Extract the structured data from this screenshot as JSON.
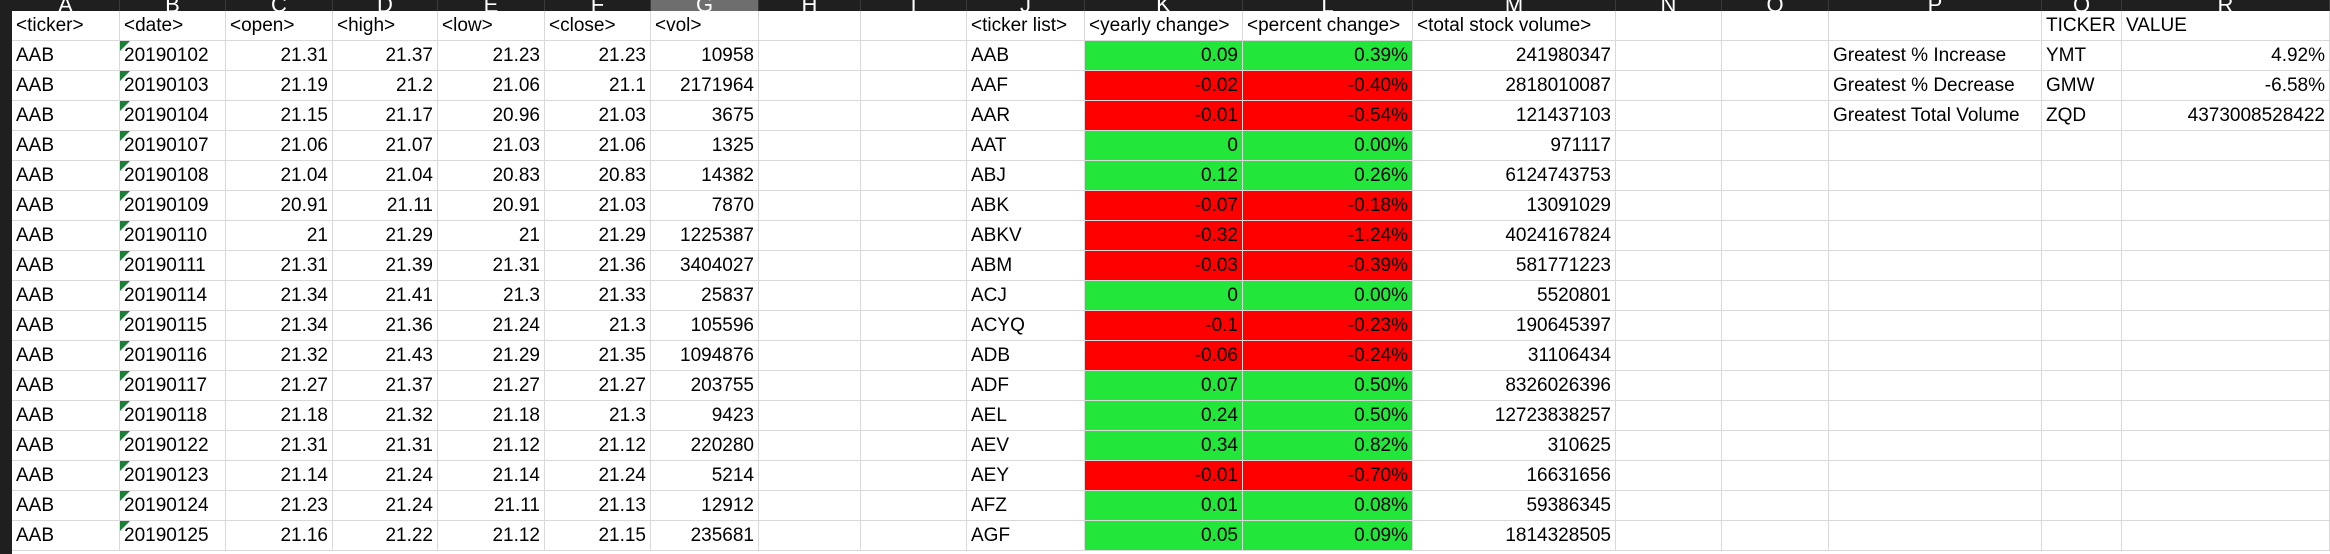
{
  "columns": [
    "A",
    "B",
    "C",
    "D",
    "E",
    "F",
    "G",
    "H",
    "I",
    "J",
    "K",
    "L",
    "M",
    "N",
    "O",
    "P",
    "Q",
    "R"
  ],
  "selected_column": "G",
  "stock_headers": [
    "<ticker>",
    "<date>",
    "<open>",
    "<high>",
    "<low>",
    "<close>",
    "<vol>"
  ],
  "stock_rows": [
    [
      "AAB",
      "20190102",
      "21.31",
      "21.37",
      "21.23",
      "21.23",
      "10958"
    ],
    [
      "AAB",
      "20190103",
      "21.19",
      "21.2",
      "21.06",
      "21.1",
      "2171964"
    ],
    [
      "AAB",
      "20190104",
      "21.15",
      "21.17",
      "20.96",
      "21.03",
      "3675"
    ],
    [
      "AAB",
      "20190107",
      "21.06",
      "21.07",
      "21.03",
      "21.06",
      "1325"
    ],
    [
      "AAB",
      "20190108",
      "21.04",
      "21.04",
      "20.83",
      "20.83",
      "14382"
    ],
    [
      "AAB",
      "20190109",
      "20.91",
      "21.11",
      "20.91",
      "21.03",
      "7870"
    ],
    [
      "AAB",
      "20190110",
      "21",
      "21.29",
      "21",
      "21.29",
      "1225387"
    ],
    [
      "AAB",
      "20190111",
      "21.31",
      "21.39",
      "21.31",
      "21.36",
      "3404027"
    ],
    [
      "AAB",
      "20190114",
      "21.34",
      "21.41",
      "21.3",
      "21.33",
      "25837"
    ],
    [
      "AAB",
      "20190115",
      "21.34",
      "21.36",
      "21.24",
      "21.3",
      "105596"
    ],
    [
      "AAB",
      "20190116",
      "21.32",
      "21.43",
      "21.29",
      "21.35",
      "1094876"
    ],
    [
      "AAB",
      "20190117",
      "21.27",
      "21.37",
      "21.27",
      "21.27",
      "203755"
    ],
    [
      "AAB",
      "20190118",
      "21.18",
      "21.32",
      "21.18",
      "21.3",
      "9423"
    ],
    [
      "AAB",
      "20190122",
      "21.31",
      "21.31",
      "21.12",
      "21.12",
      "220280"
    ],
    [
      "AAB",
      "20190123",
      "21.14",
      "21.24",
      "21.14",
      "21.24",
      "5214"
    ],
    [
      "AAB",
      "20190124",
      "21.23",
      "21.24",
      "21.11",
      "21.13",
      "12912"
    ],
    [
      "AAB",
      "20190125",
      "21.16",
      "21.22",
      "21.12",
      "21.15",
      "235681"
    ]
  ],
  "summary_headers": [
    "<ticker list>",
    "<yearly change>",
    "<percent change>",
    "<total stock volume>"
  ],
  "summary_rows": [
    [
      "AAB",
      "0.09",
      "0.39%",
      "241980347",
      "pos"
    ],
    [
      "AAF",
      "-0.02",
      "-0.40%",
      "2818010087",
      "neg"
    ],
    [
      "AAR",
      "-0.01",
      "-0.54%",
      "121437103",
      "neg"
    ],
    [
      "AAT",
      "0",
      "0.00%",
      "971117",
      "pos"
    ],
    [
      "ABJ",
      "0.12",
      "0.26%",
      "6124743753",
      "pos"
    ],
    [
      "ABK",
      "-0.07",
      "-0.18%",
      "13091029",
      "neg"
    ],
    [
      "ABKV",
      "-0.32",
      "-1.24%",
      "4024167824",
      "neg"
    ],
    [
      "ABM",
      "-0.03",
      "-0.39%",
      "581771223",
      "neg"
    ],
    [
      "ACJ",
      "0",
      "0.00%",
      "5520801",
      "pos"
    ],
    [
      "ACYQ",
      "-0.1",
      "-0.23%",
      "190645397",
      "neg"
    ],
    [
      "ADB",
      "-0.06",
      "-0.24%",
      "31106434",
      "neg"
    ],
    [
      "ADF",
      "0.07",
      "0.50%",
      "8326026396",
      "pos"
    ],
    [
      "AEL",
      "0.24",
      "0.50%",
      "12723838257",
      "pos"
    ],
    [
      "AEV",
      "0.34",
      "0.82%",
      "310625",
      "pos"
    ],
    [
      "AEY",
      "-0.01",
      "-0.70%",
      "16631656",
      "neg"
    ],
    [
      "AFZ",
      "0.01",
      "0.08%",
      "59386345",
      "pos"
    ],
    [
      "AGF",
      "0.05",
      "0.09%",
      "1814328505",
      "pos"
    ]
  ],
  "greatest_headers": [
    "TICKER",
    "VALUE"
  ],
  "greatest_rows": [
    [
      "Greatest % Increase",
      "YMT",
      "4.92%"
    ],
    [
      "Greatest % Decrease",
      "GMW",
      "-6.58%"
    ],
    [
      "Greatest Total Volume",
      "ZQD",
      "4373008528422"
    ]
  ],
  "colors": {
    "positive": "#22e63a",
    "negative": "#ff0000",
    "header_bg": "#1f1f1f",
    "date_marker": "#1a7f37"
  }
}
